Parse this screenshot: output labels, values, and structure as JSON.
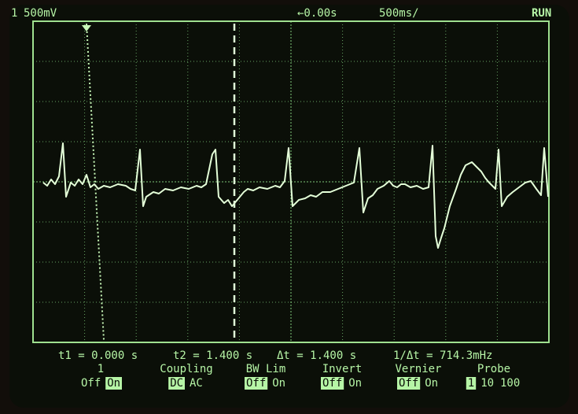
{
  "header": {
    "channel": "1",
    "scale": "500mV",
    "delay": "←0.00s",
    "timebase": "500ms/",
    "status": "RUN"
  },
  "cursors": {
    "t1": "t1 = 0.000 s",
    "t2": "t2 = 1.400 s",
    "dt": "Δt = 1.400 s",
    "inv_dt": "1/Δt = 714.3mHz"
  },
  "softkeys": [
    {
      "label": "1",
      "options": [
        "Off",
        "On"
      ],
      "selected": 1
    },
    {
      "label": "Coupling",
      "options": [
        "DC",
        "AC"
      ],
      "selected": 0
    },
    {
      "label": "BW Lim",
      "options": [
        "Off",
        "On"
      ],
      "selected": 0
    },
    {
      "label": "Invert",
      "options": [
        "Off",
        "On"
      ],
      "selected": 0
    },
    {
      "label": "Vernier",
      "options": [
        "Off",
        "On"
      ],
      "selected": 0
    },
    {
      "label": "Probe",
      "options": [
        "1",
        "10",
        "100"
      ],
      "selected": 0
    }
  ]
}
